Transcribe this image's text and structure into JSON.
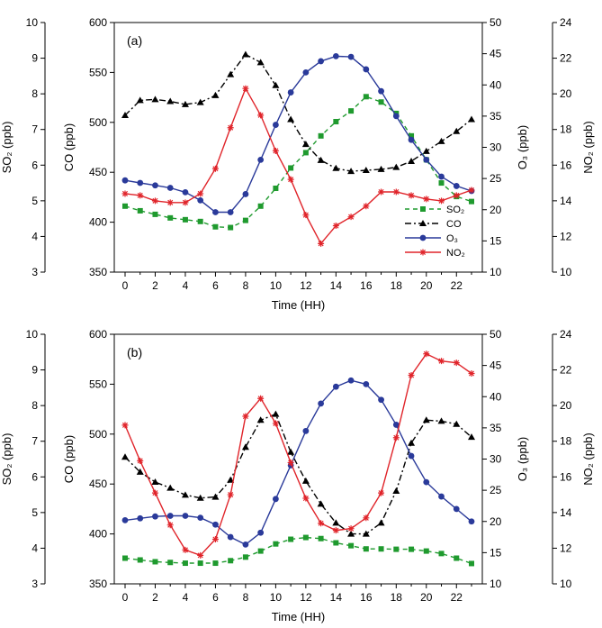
{
  "figure": {
    "panels": [
      {
        "label": "(a)",
        "xlabel": "Time (HH)"
      },
      {
        "label": "(b)",
        "xlabel": "Time (HH)"
      }
    ]
  },
  "colors": {
    "SO2": "#1f9a2e",
    "CO": "#000000",
    "O3": "#2a3a9a",
    "NO2": "#e0242a"
  },
  "chart_data": [
    {
      "type": "line",
      "title": "(a)",
      "xlabel": "Time (HH)",
      "x": [
        0,
        1,
        2,
        3,
        4,
        5,
        6,
        7,
        8,
        9,
        10,
        11,
        12,
        13,
        14,
        15,
        16,
        17,
        18,
        19,
        20,
        21,
        22,
        23
      ],
      "xticks": [
        0,
        2,
        4,
        6,
        8,
        10,
        12,
        14,
        16,
        18,
        20,
        22
      ],
      "axes": {
        "SO2": {
          "label": "SO₂ (ppb)",
          "range": [
            3,
            10
          ],
          "ticks": [
            3,
            4,
            5,
            6,
            7,
            8,
            9,
            10
          ]
        },
        "CO": {
          "label": "CO (ppb)",
          "range": [
            350,
            600
          ],
          "ticks": [
            350,
            400,
            450,
            500,
            550,
            600
          ]
        },
        "O3": {
          "label": "O₃ (ppb)",
          "range": [
            10,
            50
          ],
          "ticks": [
            10,
            15,
            20,
            25,
            30,
            35,
            40,
            45,
            50
          ]
        },
        "NO2": {
          "label": "NO₂ (ppb)",
          "range": [
            10,
            24
          ],
          "ticks": [
            10,
            12,
            14,
            16,
            18,
            20,
            22,
            24
          ]
        }
      },
      "legend": {
        "position": "lower-right",
        "entries": [
          "SO₂",
          "CO",
          "O₃",
          "NO₂"
        ]
      },
      "series": [
        {
          "name": "SO₂",
          "axis": "SO2",
          "values": [
            4.85,
            4.72,
            4.62,
            4.52,
            4.47,
            4.42,
            4.27,
            4.25,
            4.45,
            4.85,
            5.35,
            5.92,
            6.35,
            6.82,
            7.22,
            7.52,
            7.92,
            7.77,
            7.45,
            6.82,
            6.15,
            5.5,
            5.12,
            4.98
          ]
        },
        {
          "name": "CO",
          "axis": "CO",
          "values": [
            507,
            522,
            523,
            521,
            518,
            520,
            527,
            548,
            568,
            560,
            537,
            503,
            478,
            462,
            454,
            451,
            452,
            453,
            455,
            461,
            471,
            481,
            491,
            503
          ]
        },
        {
          "name": "O₃",
          "axis": "O3",
          "values": [
            24.7,
            24.3,
            23.9,
            23.5,
            22.8,
            21.5,
            19.6,
            19.6,
            22.5,
            28.0,
            33.6,
            38.8,
            42.0,
            43.8,
            44.6,
            44.5,
            42.5,
            39.0,
            35.0,
            31.2,
            28.0,
            25.3,
            23.8,
            23.0
          ]
        },
        {
          "name": "NO₂",
          "axis": "NO2",
          "values": [
            14.4,
            14.3,
            14.0,
            13.9,
            13.9,
            14.4,
            15.8,
            18.1,
            20.3,
            18.8,
            16.8,
            15.2,
            13.2,
            11.6,
            12.6,
            13.1,
            13.7,
            14.5,
            14.5,
            14.3,
            14.1,
            14.0,
            14.3,
            14.6
          ]
        }
      ]
    },
    {
      "type": "line",
      "title": "(b)",
      "xlabel": "Time (HH)",
      "x": [
        0,
        1,
        2,
        3,
        4,
        5,
        6,
        7,
        8,
        9,
        10,
        11,
        12,
        13,
        14,
        15,
        16,
        17,
        18,
        19,
        20,
        21,
        22,
        23
      ],
      "xticks": [
        0,
        2,
        4,
        6,
        8,
        10,
        12,
        14,
        16,
        18,
        20,
        22
      ],
      "axes": {
        "SO2": {
          "label": "SO₂ (ppb)",
          "range": [
            3,
            10
          ],
          "ticks": [
            3,
            4,
            5,
            6,
            7,
            8,
            9,
            10
          ]
        },
        "CO": {
          "label": "CO (ppb)",
          "range": [
            350,
            600
          ],
          "ticks": [
            350,
            400,
            450,
            500,
            550,
            600
          ]
        },
        "O3": {
          "label": "O₃ (ppb)",
          "range": [
            10,
            50
          ],
          "ticks": [
            10,
            15,
            20,
            25,
            30,
            35,
            40,
            45,
            50
          ]
        },
        "NO2": {
          "label": "NO₂ (ppb)",
          "range": [
            10,
            24
          ],
          "ticks": [
            10,
            12,
            14,
            16,
            18,
            20,
            22,
            24
          ]
        }
      },
      "series": [
        {
          "name": "SO₂",
          "axis": "SO2",
          "values": [
            3.72,
            3.67,
            3.62,
            3.6,
            3.58,
            3.58,
            3.58,
            3.65,
            3.75,
            3.92,
            4.12,
            4.25,
            4.3,
            4.27,
            4.15,
            4.07,
            3.98,
            3.98,
            3.97,
            3.97,
            3.92,
            3.85,
            3.72,
            3.57
          ]
        },
        {
          "name": "CO",
          "axis": "CO",
          "values": [
            477,
            462,
            452,
            446,
            439,
            436,
            437,
            454,
            487,
            514,
            520,
            482,
            453,
            430,
            411,
            400,
            400,
            411,
            443,
            491,
            514,
            513,
            510,
            497
          ]
        },
        {
          "name": "O₃",
          "axis": "O3",
          "values": [
            20.2,
            20.5,
            20.8,
            20.9,
            20.9,
            20.6,
            19.5,
            17.5,
            16.3,
            18.2,
            23.6,
            29.0,
            34.5,
            38.9,
            41.6,
            42.6,
            42.0,
            39.5,
            35.5,
            30.5,
            26.3,
            24.0,
            22.0,
            20.0
          ]
        },
        {
          "name": "NO₂",
          "axis": "NO2",
          "values": [
            18.9,
            16.9,
            15.1,
            13.3,
            11.9,
            11.6,
            12.5,
            15.0,
            19.4,
            20.4,
            19.0,
            16.8,
            14.8,
            13.4,
            13.0,
            13.1,
            13.7,
            15.1,
            18.2,
            21.7,
            22.9,
            22.5,
            22.4,
            21.8
          ]
        }
      ]
    }
  ]
}
